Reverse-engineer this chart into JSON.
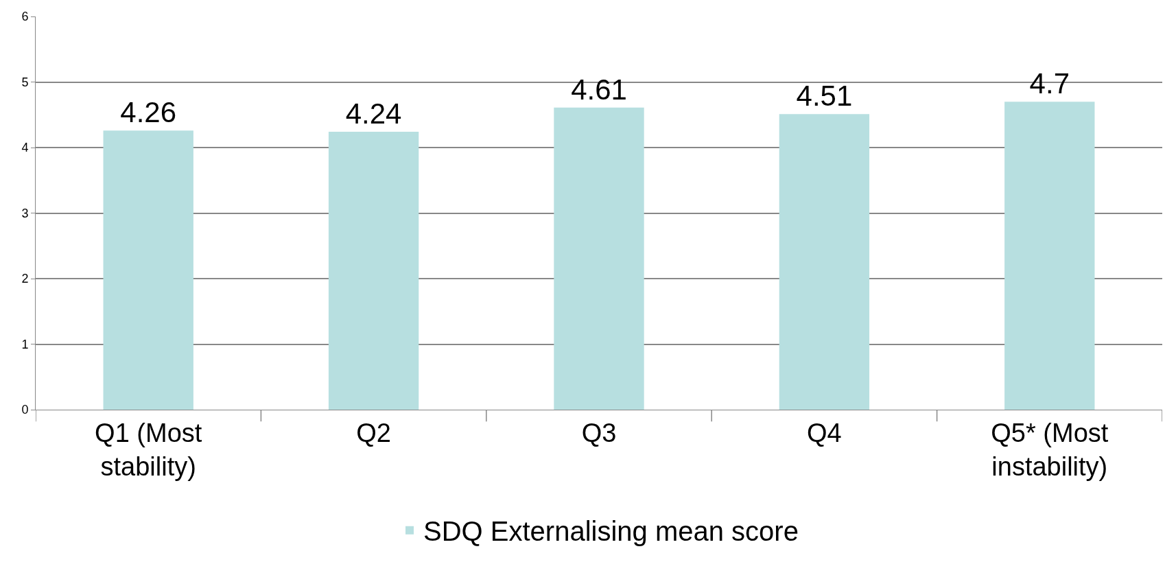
{
  "chart_data": {
    "type": "bar",
    "categories": [
      "Q1 (Most stability)",
      "Q2",
      "Q3",
      "Q4",
      "Q5* (Most instability)"
    ],
    "series": [
      {
        "name": "SDQ Externalising mean score",
        "color": "#b7dfe0",
        "values": [
          4.26,
          4.24,
          4.61,
          4.51,
          4.7
        ]
      }
    ],
    "ylim": [
      0,
      6
    ],
    "yticks": [
      0,
      1,
      2,
      3,
      4,
      5,
      6
    ],
    "grid": "y",
    "legend": "bottom",
    "data_labels": true
  }
}
